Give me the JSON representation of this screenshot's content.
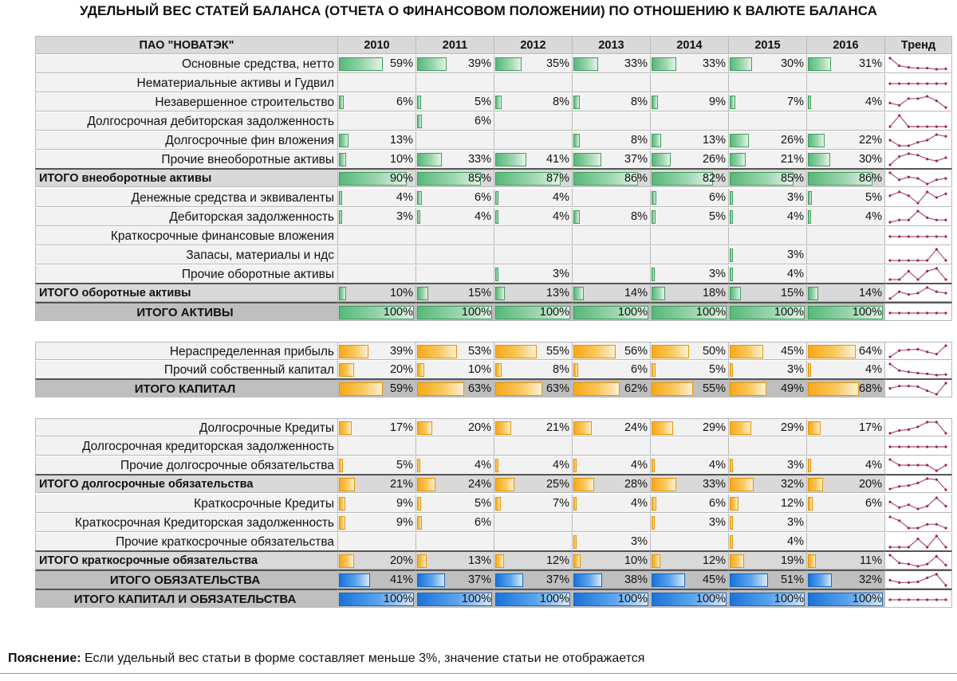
{
  "title": "УДЕЛЬНЫЙ ВЕС СТАТЕЙ БАЛАНСА (ОТЧЕТА О ФИНАНСОВОМ ПОЛОЖЕНИИ) ПО ОТНОШЕНИЮ К ВАЛЮТЕ БАЛАНСА",
  "header": {
    "company": "ПАО \"НОВАТЭК\"",
    "years": [
      "2010",
      "2011",
      "2012",
      "2013",
      "2014",
      "2015",
      "2016"
    ],
    "trend": "Тренд"
  },
  "colors": {
    "header_bg": "#d9d9d9",
    "total_bg": "#d9d9d9",
    "grand_bg": "#bfbfbf",
    "row_bg": "#f2f2f2",
    "green": "#58b87a",
    "orange": "#f7a919",
    "blue": "#1a73d8",
    "trend_line": "#a05a6e",
    "trend_marker": "#b02040"
  },
  "sections": [
    {
      "color": "green",
      "rows": [
        {
          "label": "Основные средства, нетто",
          "kind": "item",
          "values": [
            59,
            39,
            35,
            33,
            33,
            30,
            31
          ]
        },
        {
          "label": "Нематериальные активы и Гудвил",
          "kind": "item",
          "values": [
            null,
            null,
            null,
            null,
            null,
            null,
            null
          ]
        },
        {
          "label": "Незавершенное строительство",
          "kind": "item",
          "values": [
            6,
            5,
            8,
            8,
            9,
            7,
            4
          ]
        },
        {
          "label": "Долгосрочная дебиторская задолженность",
          "kind": "item",
          "values": [
            null,
            6,
            null,
            null,
            null,
            null,
            null
          ]
        },
        {
          "label": "Долгосрочные фин вложения",
          "kind": "item",
          "values": [
            13,
            null,
            null,
            8,
            13,
            26,
            22
          ]
        },
        {
          "label": "Прочие внеоборотные активы",
          "kind": "item",
          "values": [
            10,
            33,
            41,
            37,
            26,
            21,
            30
          ]
        },
        {
          "label": "ИТОГО внеоборотные активы",
          "kind": "total",
          "values": [
            90,
            85,
            87,
            86,
            82,
            85,
            86
          ]
        },
        {
          "label": "Денежные средства и эквиваленты",
          "kind": "item",
          "values": [
            4,
            6,
            4,
            null,
            6,
            3,
            5
          ]
        },
        {
          "label": "Дебиторская задолженность",
          "kind": "item",
          "values": [
            3,
            4,
            4,
            8,
            5,
            4,
            4
          ]
        },
        {
          "label": "Краткосрочные финансовые вложения",
          "kind": "item",
          "values": [
            null,
            null,
            null,
            null,
            null,
            null,
            null
          ]
        },
        {
          "label": "Запасы, материалы и ндс",
          "kind": "item",
          "values": [
            null,
            null,
            null,
            null,
            null,
            3,
            null
          ]
        },
        {
          "label": "Прочие оборотные активы",
          "kind": "item",
          "values": [
            null,
            null,
            3,
            null,
            3,
            4,
            null
          ]
        },
        {
          "label": "ИТОГО оборотные активы",
          "kind": "total",
          "values": [
            10,
            15,
            13,
            14,
            18,
            15,
            14
          ]
        },
        {
          "label": "ИТОГО АКТИВЫ",
          "kind": "grand",
          "values": [
            100,
            100,
            100,
            100,
            100,
            100,
            100
          ]
        }
      ]
    },
    {
      "color": "orange",
      "rows": [
        {
          "label": "Нераспределенная прибыль",
          "kind": "item",
          "values": [
            39,
            53,
            55,
            56,
            50,
            45,
            64
          ]
        },
        {
          "label": "Прочий собственный капитал",
          "kind": "item",
          "values": [
            20,
            10,
            8,
            6,
            5,
            3,
            4
          ]
        },
        {
          "label": "ИТОГО КАПИТАЛ",
          "kind": "grand",
          "values": [
            59,
            63,
            63,
            62,
            55,
            49,
            68
          ]
        }
      ]
    },
    {
      "color": "orange",
      "rows": [
        {
          "label": "Долгосрочные Кредиты",
          "kind": "item",
          "values": [
            17,
            20,
            21,
            24,
            29,
            29,
            17
          ]
        },
        {
          "label": "Долгосрочная кредиторская задолженность",
          "kind": "item",
          "values": [
            null,
            null,
            null,
            null,
            null,
            null,
            null
          ]
        },
        {
          "label": "Прочие долгосрочные обязательства",
          "kind": "item",
          "values": [
            5,
            4,
            4,
            4,
            4,
            3,
            4
          ]
        },
        {
          "label": "ИТОГО долгосрочные обязательства",
          "kind": "total",
          "values": [
            21,
            24,
            25,
            28,
            33,
            32,
            20
          ]
        },
        {
          "label": "Краткосрочные Кредиты",
          "kind": "item",
          "values": [
            9,
            5,
            7,
            4,
            6,
            12,
            6
          ]
        },
        {
          "label": "Краткосрочная Кредиторская задолженность",
          "kind": "item",
          "values": [
            9,
            6,
            null,
            null,
            3,
            3,
            null
          ]
        },
        {
          "label": "Прочие краткосрочные обязательства",
          "kind": "item",
          "values": [
            null,
            null,
            null,
            3,
            null,
            4,
            null
          ]
        },
        {
          "label": "ИТОГО краткосрочные обязательства",
          "kind": "total",
          "values": [
            20,
            13,
            12,
            10,
            12,
            19,
            11
          ]
        },
        {
          "label": "ИТОГО ОБЯЗАТЕЛЬСТВА",
          "kind": "grand",
          "color": "blue",
          "values": [
            41,
            37,
            37,
            38,
            45,
            51,
            32
          ]
        },
        {
          "label": "ИТОГО КАПИТАЛ И ОБЯЗАТЕЛЬСТВА",
          "kind": "grand",
          "color": "blue",
          "values": [
            100,
            100,
            100,
            100,
            100,
            100,
            100
          ]
        }
      ]
    }
  ],
  "note": {
    "bold": "Пояснение:",
    "text": " Если удельный вес статьи в форме составляет меньше 3%, значение статьи не отображается"
  }
}
